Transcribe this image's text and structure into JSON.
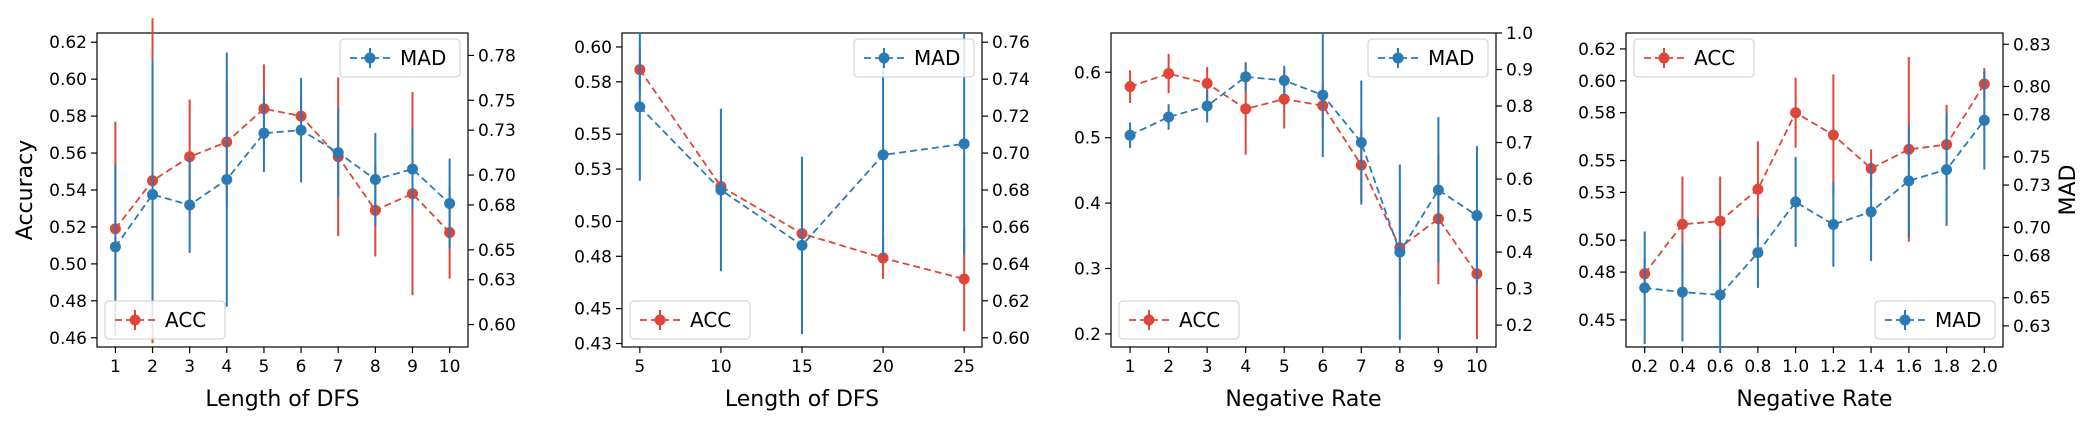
{
  "colors": {
    "acc": "#e0453a",
    "mad": "#2a7ab5"
  },
  "legend_labels": {
    "acc": "ACC",
    "mad": "MAD"
  },
  "chart_data": [
    {
      "type": "line",
      "xlabel": "Length of DFS",
      "ylabel_left": "Accuracy",
      "ylabel_right": "",
      "x": [
        1,
        2,
        3,
        4,
        5,
        6,
        7,
        8,
        9,
        10
      ],
      "x_ticks": [
        "1",
        "2",
        "3",
        "4",
        "5",
        "6",
        "7",
        "8",
        "9",
        "10"
      ],
      "ylim_left": [
        0.455,
        0.625
      ],
      "yticks_left": [
        "0.46",
        "0.48",
        "0.50",
        "0.52",
        "0.54",
        "0.56",
        "0.58",
        "0.60",
        "0.62"
      ],
      "ylim_right": [
        0.585,
        0.795
      ],
      "yticks_right": [
        "0.60",
        "0.63",
        "0.65",
        "0.68",
        "0.70",
        "0.73",
        "0.75",
        "0.78"
      ],
      "legend": {
        "acc": "bottom-left",
        "mad": "top-right"
      },
      "series": [
        {
          "name": "ACC",
          "axis": "left",
          "values": [
            0.519,
            0.545,
            0.558,
            0.566,
            0.584,
            0.58,
            0.558,
            0.529,
            0.538,
            0.517
          ],
          "err": [
            0.058,
            0.088,
            0.031,
            0.033,
            0.024,
            0.011,
            0.043,
            0.025,
            0.055,
            0.025
          ]
        },
        {
          "name": "MAD",
          "axis": "right",
          "values": [
            0.652,
            0.687,
            0.68,
            0.697,
            0.728,
            0.73,
            0.715,
            0.697,
            0.704,
            0.681
          ],
          "err": [
            0.055,
            0.09,
            0.032,
            0.085,
            0.026,
            0.035,
            0.03,
            0.031,
            0.027,
            0.03
          ]
        }
      ]
    },
    {
      "type": "line",
      "xlabel": "Length of DFS",
      "ylabel_left": "",
      "ylabel_right": "",
      "x": [
        5,
        10,
        15,
        20,
        25
      ],
      "x_ticks": [
        "5",
        "10",
        "15",
        "20",
        "25"
      ],
      "ylim_left": [
        0.428,
        0.608
      ],
      "yticks_left": [
        "0.43",
        "0.45",
        "0.48",
        "0.50",
        "0.53",
        "0.55",
        "0.58",
        "0.60"
      ],
      "ylim_right": [
        0.595,
        0.765
      ],
      "yticks_right": [
        "0.60",
        "0.62",
        "0.64",
        "0.66",
        "0.68",
        "0.70",
        "0.72",
        "0.74",
        "0.76"
      ],
      "legend": {
        "acc": "bottom-left",
        "mad": "top-right"
      },
      "series": [
        {
          "name": "ACC",
          "axis": "left",
          "values": [
            0.587,
            0.52,
            0.493,
            0.479,
            0.467
          ],
          "err": [
            0.012,
            0.008,
            0.005,
            0.012,
            0.03
          ]
        },
        {
          "name": "MAD",
          "axis": "right",
          "values": [
            0.725,
            0.68,
            0.65,
            0.699,
            0.705
          ],
          "err": [
            0.04,
            0.044,
            0.048,
            0.055,
            0.06
          ]
        }
      ]
    },
    {
      "type": "line",
      "xlabel": "Negative Rate",
      "ylabel_left": "",
      "ylabel_right": "",
      "x": [
        1,
        2,
        3,
        4,
        5,
        6,
        7,
        8,
        9,
        10
      ],
      "x_ticks": [
        "1",
        "2",
        "3",
        "4",
        "5",
        "6",
        "7",
        "8",
        "9",
        "10"
      ],
      "ylim_left": [
        0.18,
        0.66
      ],
      "yticks_left": [
        "0.2",
        "0.3",
        "0.4",
        "0.5",
        "0.6"
      ],
      "ylim_right": [
        0.14,
        1.0
      ],
      "yticks_right": [
        "0.2",
        "0.3",
        "0.4",
        "0.5",
        "0.6",
        "0.7",
        "0.8",
        "0.9",
        "1.0"
      ],
      "legend": {
        "acc": "bottom-left",
        "mad": "top-right"
      },
      "series": [
        {
          "name": "ACC",
          "axis": "left",
          "values": [
            0.578,
            0.598,
            0.583,
            0.544,
            0.559,
            0.549,
            0.458,
            0.332,
            0.376,
            0.292
          ],
          "err": [
            0.025,
            0.03,
            0.025,
            0.07,
            0.045,
            0.035,
            0.055,
            0.075,
            0.1,
            0.1
          ]
        },
        {
          "name": "MAD",
          "axis": "right",
          "values": [
            0.72,
            0.77,
            0.8,
            0.88,
            0.87,
            0.83,
            0.7,
            0.4,
            0.57,
            0.5
          ],
          "err": [
            0.035,
            0.035,
            0.045,
            0.04,
            0.04,
            0.17,
            0.17,
            0.24,
            0.2,
            0.19
          ]
        }
      ]
    },
    {
      "type": "line",
      "xlabel": "Negative Rate",
      "ylabel_left": "",
      "ylabel_right": "MAD",
      "x": [
        0.2,
        0.4,
        0.6,
        0.8,
        1.0,
        1.2,
        1.4,
        1.6,
        1.8,
        2.0
      ],
      "x_ticks": [
        "0.2",
        "0.4",
        "0.6",
        "0.8",
        "1.0",
        "1.2",
        "1.4",
        "1.6",
        "1.8",
        "2.0"
      ],
      "ylim_left": [
        0.433,
        0.63
      ],
      "yticks_left": [
        "0.45",
        "0.48",
        "0.50",
        "0.53",
        "0.55",
        "0.58",
        "0.60",
        "0.62"
      ],
      "ylim_right": [
        0.615,
        0.838
      ],
      "yticks_right": [
        "0.63",
        "0.65",
        "0.68",
        "0.70",
        "0.73",
        "0.75",
        "0.78",
        "0.80",
        "0.83"
      ],
      "legend": {
        "acc": "top-left",
        "mad": "bottom-right"
      },
      "series": [
        {
          "name": "ACC",
          "axis": "left",
          "values": [
            0.479,
            0.51,
            0.512,
            0.532,
            0.58,
            0.566,
            0.545,
            0.557,
            0.56,
            0.598
          ],
          "err": [
            0.01,
            0.03,
            0.028,
            0.03,
            0.022,
            0.038,
            0.012,
            0.058,
            0.025,
            0.01
          ]
        },
        {
          "name": "MAD",
          "axis": "right",
          "values": [
            0.657,
            0.654,
            0.652,
            0.682,
            0.718,
            0.702,
            0.711,
            0.733,
            0.741,
            0.776
          ],
          "err": [
            0.04,
            0.035,
            0.04,
            0.025,
            0.032,
            0.03,
            0.035,
            0.04,
            0.04,
            0.035
          ]
        }
      ]
    }
  ]
}
